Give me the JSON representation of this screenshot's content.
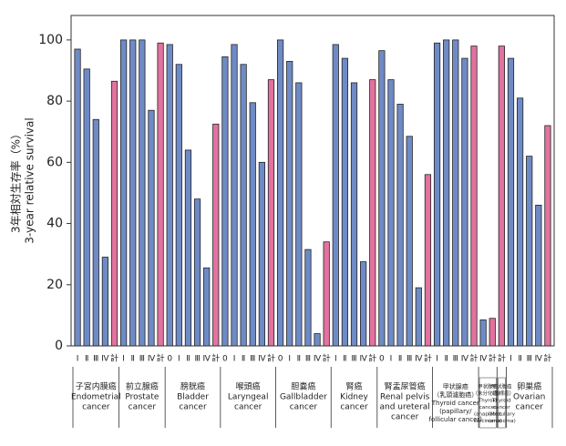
{
  "chart_data": {
    "type": "grouped-bar",
    "ylabel_lines": [
      "3年相対生存率（%）",
      "3-year relative survival"
    ],
    "ylim": [
      0,
      108
    ],
    "yticks": [
      0,
      20,
      40,
      60,
      80,
      100
    ],
    "stage_color": "#6f8bc6",
    "total_color": "#e2729f",
    "groups": [
      {
        "label_lines": [
          "子宮内膜癌",
          "Endometrial",
          "cancer"
        ],
        "categories": [
          "Ⅰ",
          "Ⅱ",
          "Ⅲ",
          "Ⅳ",
          "計"
        ],
        "values": [
          97,
          90.5,
          74,
          29,
          86.5
        ]
      },
      {
        "label_lines": [
          "前立腺癌",
          "Prostate",
          "cancer"
        ],
        "categories": [
          "Ⅰ",
          "Ⅱ",
          "Ⅲ",
          "Ⅳ",
          "計"
        ],
        "values": [
          100,
          100,
          100,
          77,
          99
        ]
      },
      {
        "label_lines": [
          "膀胱癌",
          "Bladder",
          "cancer"
        ],
        "categories": [
          "0",
          "Ⅰ",
          "Ⅱ",
          "Ⅲ",
          "Ⅳ",
          "計"
        ],
        "values": [
          98.5,
          92,
          64,
          48,
          25.5,
          72.5
        ]
      },
      {
        "label_lines": [
          "喉頭癌",
          "Laryngeal",
          "cancer"
        ],
        "categories": [
          "0",
          "Ⅰ",
          "Ⅱ",
          "Ⅲ",
          "Ⅳ",
          "計"
        ],
        "values": [
          94.5,
          98.5,
          92,
          79.5,
          60,
          87
        ]
      },
      {
        "label_lines": [
          "胆嚢癌",
          "Gallbladder",
          "cancer"
        ],
        "categories": [
          "0",
          "Ⅰ",
          "Ⅱ",
          "Ⅲ",
          "Ⅳ",
          "計"
        ],
        "values": [
          100,
          93,
          86,
          31.5,
          4,
          34
        ]
      },
      {
        "label_lines": [
          "腎癌",
          "Kidney",
          "cancer"
        ],
        "categories": [
          "Ⅰ",
          "Ⅱ",
          "Ⅲ",
          "Ⅳ",
          "計"
        ],
        "values": [
          98.5,
          94,
          86,
          27.5,
          87
        ]
      },
      {
        "label_lines": [
          "腎盂尿管癌",
          "Renal pelvis",
          "and ureteral",
          "cancer"
        ],
        "categories": [
          "0",
          "Ⅰ",
          "Ⅱ",
          "Ⅲ",
          "Ⅳ",
          "計"
        ],
        "values": [
          96.5,
          87,
          79,
          68.5,
          19,
          56
        ]
      },
      {
        "label_lines": [
          "甲状腺癌",
          "（乳頭濾胞癌）",
          "Thyroid cancer",
          "(papillary/",
          "follicular cancer)"
        ],
        "categories": [
          "Ⅰ",
          "Ⅱ",
          "Ⅲ",
          "Ⅳ",
          "計"
        ],
        "values": [
          99,
          100,
          100,
          94,
          98
        ]
      },
      {
        "label_lines": [
          "甲状腺癌",
          "（未分化癌）",
          "Thyroid",
          "cancer",
          "(anaplastic",
          "carcinoma)"
        ],
        "categories": [
          "Ⅳ",
          "計"
        ],
        "values": [
          8.5,
          9
        ]
      },
      {
        "label_lines": [
          "甲状腺癌",
          "（髄様癌）",
          "Thyroid",
          "cancer",
          "(Medullary",
          "carcinoma)"
        ],
        "categories": [
          "計"
        ],
        "values": [
          98
        ]
      },
      {
        "label_lines": [
          "卵巣癌",
          "Ovarian",
          "cancer"
        ],
        "categories": [
          "Ⅰ",
          "Ⅱ",
          "Ⅲ",
          "Ⅳ",
          "計"
        ],
        "values": [
          94,
          81,
          62,
          46,
          72
        ]
      }
    ]
  }
}
